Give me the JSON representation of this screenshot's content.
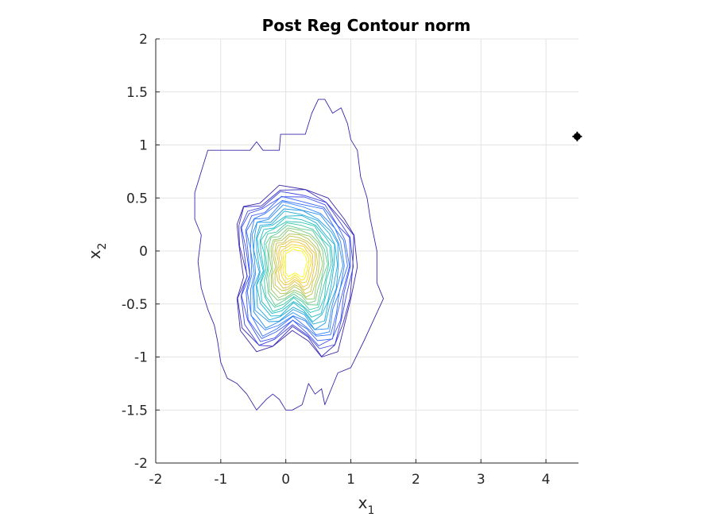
{
  "chart_data": {
    "type": "contour",
    "title": "Post Reg Contour norm",
    "xlabel": {
      "base": "x",
      "sub": "1"
    },
    "ylabel": {
      "base": "x",
      "sub": "2"
    },
    "xlim": [
      -2,
      4.5
    ],
    "ylim": [
      -2,
      2
    ],
    "xticks": [
      -2,
      -1,
      0,
      1,
      2,
      3,
      4
    ],
    "yticks": [
      -2,
      -1.5,
      -1,
      -0.5,
      0,
      0.5,
      1,
      1.5,
      2
    ],
    "xtick_labels": [
      "-2",
      "-1",
      "0",
      "1",
      "2",
      "3",
      "4"
    ],
    "ytick_labels": [
      "-2",
      "-1.5",
      "-1",
      "-0.5",
      "0",
      "0.5",
      "1",
      "1.5",
      "2"
    ],
    "grid": true,
    "colormap": [
      "#3d26a8",
      "#3e4ff5",
      "#2f7bff",
      "#1ea5e0",
      "#19c2c0",
      "#63cc8a",
      "#b8c34c",
      "#f4c02c",
      "#f9fb0e"
    ],
    "outer_contour": [
      [
        -1.4,
        0.55
      ],
      [
        -1.3,
        0.75
      ],
      [
        -1.2,
        0.95
      ],
      [
        -0.55,
        0.95
      ],
      [
        -0.45,
        1.03
      ],
      [
        -0.35,
        0.95
      ],
      [
        -0.1,
        0.95
      ],
      [
        -0.08,
        1.1
      ],
      [
        0.05,
        1.1
      ],
      [
        0.3,
        1.1
      ],
      [
        0.4,
        1.3
      ],
      [
        0.5,
        1.43
      ],
      [
        0.6,
        1.43
      ],
      [
        0.72,
        1.3
      ],
      [
        0.85,
        1.35
      ],
      [
        0.95,
        1.2
      ],
      [
        1.0,
        1.05
      ],
      [
        1.1,
        0.95
      ],
      [
        1.15,
        0.7
      ],
      [
        1.25,
        0.5
      ],
      [
        1.3,
        0.3
      ],
      [
        1.4,
        0.0
      ],
      [
        1.4,
        -0.3
      ],
      [
        1.5,
        -0.45
      ],
      [
        1.35,
        -0.65
      ],
      [
        1.2,
        -0.85
      ],
      [
        1.0,
        -1.1
      ],
      [
        0.8,
        -1.15
      ],
      [
        0.6,
        -1.45
      ],
      [
        0.55,
        -1.3
      ],
      [
        0.45,
        -1.35
      ],
      [
        0.35,
        -1.25
      ],
      [
        0.25,
        -1.45
      ],
      [
        0.1,
        -1.5
      ],
      [
        0.0,
        -1.5
      ],
      [
        -0.1,
        -1.4
      ],
      [
        -0.2,
        -1.35
      ],
      [
        -0.3,
        -1.4
      ],
      [
        -0.45,
        -1.5
      ],
      [
        -0.6,
        -1.35
      ],
      [
        -0.75,
        -1.25
      ],
      [
        -0.9,
        -1.2
      ],
      [
        -1.0,
        -1.05
      ],
      [
        -1.05,
        -0.85
      ],
      [
        -1.1,
        -0.7
      ],
      [
        -1.2,
        -0.55
      ],
      [
        -1.3,
        -0.35
      ],
      [
        -1.35,
        -0.1
      ],
      [
        -1.3,
        0.15
      ],
      [
        -1.4,
        0.3
      ]
    ],
    "level_count": 24,
    "outlier_point": [
      4.48,
      1.08
    ]
  }
}
